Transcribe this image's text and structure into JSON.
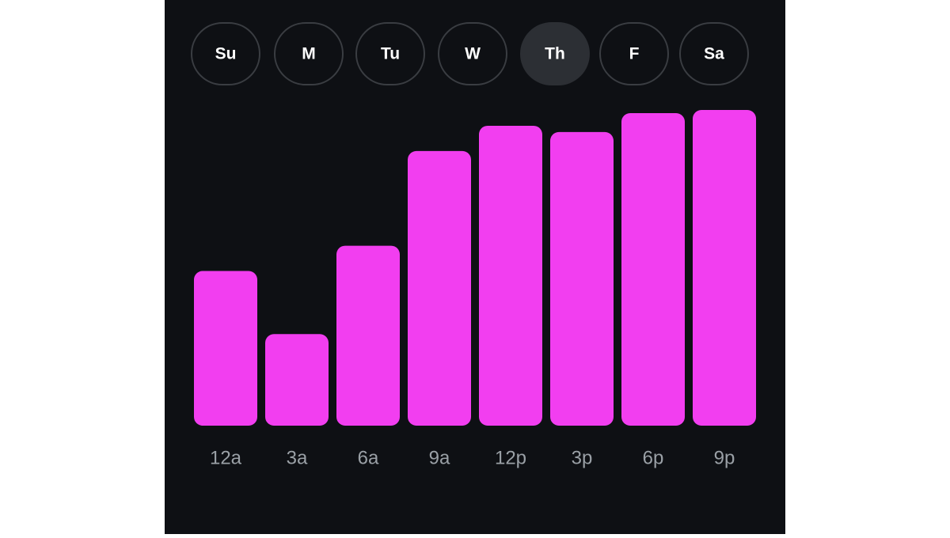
{
  "day_tabs": {
    "days": [
      "Su",
      "M",
      "Tu",
      "W",
      "Th",
      "F",
      "Sa"
    ],
    "selected": 4
  },
  "chart_data": {
    "type": "bar",
    "categories": [
      "12a",
      "3a",
      "6a",
      "9a",
      "12p",
      "3p",
      "6p",
      "9p"
    ],
    "values": [
      49,
      29,
      57,
      87,
      95,
      93,
      99,
      100
    ],
    "color": "#f23ef0",
    "ylim": [
      0,
      100
    ]
  }
}
